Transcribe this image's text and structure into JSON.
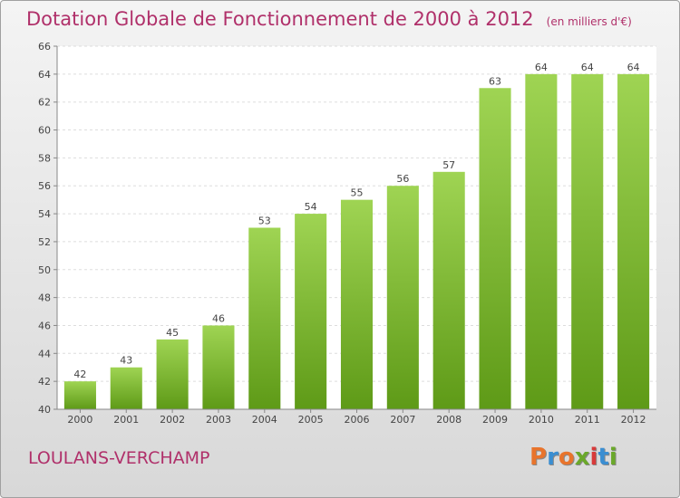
{
  "chart_title": "Dotation Globale de Fonctionnement de 2000 à 2012",
  "chart_unit": "(en milliers d'€)",
  "commune": "LOULANS-VERCHAMP",
  "logo_text": "Proxiti",
  "colors": {
    "title": "#b0306a",
    "bar_top": "#9fd453",
    "bar_bottom": "#5e9a17",
    "logo": [
      "#e8742c",
      "#3a8ed2",
      "#e8742c",
      "#6aa82a",
      "#d83a3a",
      "#3a8ed2",
      "#6aa82a"
    ]
  },
  "chart_data": {
    "type": "bar",
    "categories": [
      "2000",
      "2001",
      "2002",
      "2003",
      "2004",
      "2005",
      "2006",
      "2007",
      "2008",
      "2009",
      "2010",
      "2011",
      "2012"
    ],
    "values": [
      42,
      43,
      45,
      46,
      53,
      54,
      55,
      56,
      57,
      63,
      64,
      64,
      64
    ],
    "ylim": [
      40,
      66
    ],
    "yticks": [
      40,
      42,
      44,
      46,
      48,
      50,
      52,
      54,
      56,
      58,
      60,
      62,
      64,
      66
    ],
    "grid": true,
    "legend": "none"
  }
}
